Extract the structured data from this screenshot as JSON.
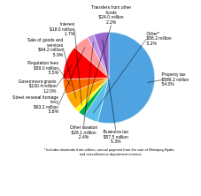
{
  "chart_data": {
    "type": "pie",
    "categories": [
      "Property tax\n$586.2 million\n54.0%",
      "Other*\n$56.2 million\n5.2%",
      "Transfers from other\nfunds\n$24.0 million\n2.2%",
      "Interest\n$18.0 million\n1.7%",
      "Sale of goods and\nservices\n$64.2 million\n5.9%",
      "Regulation fees\n$59.0 million\n5.5%",
      "Government grants\n$130.4 million\n12.0%",
      "Street renewal frontage\nlevy\n$63.2 million\n5.8%",
      "Other taxation\n$26.1 million\n2.4%",
      "Business tax\n$57.5 million\n5.3%"
    ],
    "values": [
      54.0,
      5.2,
      2.2,
      1.7,
      5.9,
      5.5,
      12.0,
      5.8,
      2.4,
      5.3
    ],
    "colors": [
      "#4fa3e0",
      "#5bbfea",
      "#00b050",
      "#ffff00",
      "#ffa500",
      "#ff6600",
      "#ff0000",
      "#ff9999",
      "#bf94e4",
      "#9966cc"
    ],
    "footnote": "* Includes dividends from utilities, annual payment from the sale of Winnipeg Hydro\n   and miscellaneous department revenue"
  }
}
